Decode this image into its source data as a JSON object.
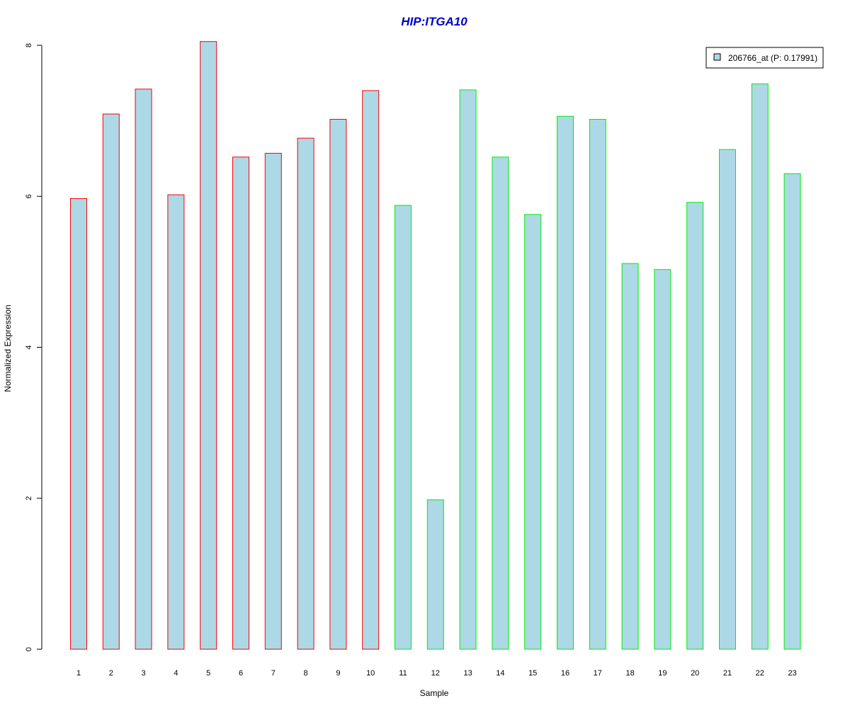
{
  "chart_data": {
    "type": "bar",
    "title": "HIP:ITGA10",
    "xlabel": "Sample",
    "ylabel": "Normalized Expression",
    "ylim": [
      0,
      8
    ],
    "yticks": [
      "0",
      "2",
      "4",
      "6",
      "8"
    ],
    "categories": [
      "1",
      "2",
      "3",
      "4",
      "5",
      "6",
      "7",
      "8",
      "9",
      "10",
      "11",
      "12",
      "13",
      "14",
      "15",
      "16",
      "17",
      "18",
      "19",
      "20",
      "21",
      "22",
      "23"
    ],
    "values": [
      5.97,
      7.09,
      7.42,
      6.02,
      8.05,
      6.52,
      6.57,
      6.77,
      7.02,
      7.4,
      5.88,
      1.98,
      7.41,
      6.52,
      5.76,
      7.06,
      7.02,
      5.11,
      5.03,
      5.92,
      6.62,
      7.49,
      6.3
    ],
    "groups": [
      "red",
      "red",
      "red",
      "red",
      "red",
      "red",
      "red",
      "red",
      "red",
      "red",
      "green",
      "green",
      "green",
      "green",
      "green",
      "green",
      "green",
      "green",
      "green",
      "green",
      "green",
      "green",
      "green"
    ],
    "fill_color": "#add8e6",
    "group_colors": {
      "red": "#ff0000",
      "green": "#00ee00"
    },
    "legend": {
      "label": "206766_at (P: 0.17991)",
      "position": "top-right"
    },
    "grid": false
  }
}
